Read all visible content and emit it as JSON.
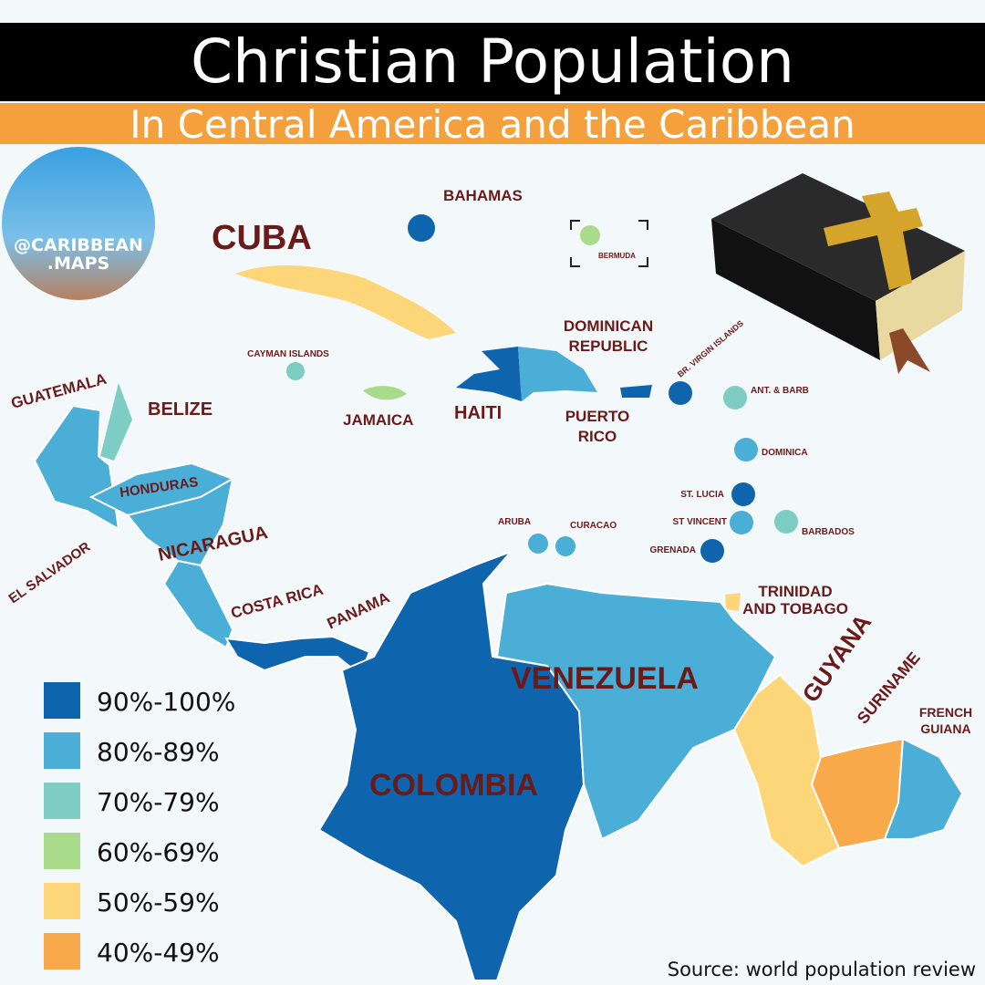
{
  "header": {
    "title": "Christian Population",
    "subtitle": "In Central America and the Caribbean"
  },
  "logo": {
    "handle": [
      "@CARIBBEAN",
      ".MAPS"
    ]
  },
  "map": {
    "labels": {
      "cuba": "CUBA",
      "bahamas": "BAHAMAS",
      "bermuda": "BERMUDA",
      "dominican_republic": [
        "DOMINICAN",
        "REPUBLIC"
      ],
      "cayman_islands": "CAYMAN ISLANDS",
      "guatemala": "GUATEMALA",
      "belize": "BELIZE",
      "jamaica": "JAMAICA",
      "haiti": "HAITI",
      "puerto_rico": [
        "PUERTO",
        "RICO"
      ],
      "br_virgin_islands": "BR. VIRGIN ISLANDS",
      "ant_barb": "ANT. & BARB",
      "dominica": "DOMINICA",
      "honduras": "HONDURAS",
      "st_lucia": "ST. LUCIA",
      "st_vincent": "ST VINCENT",
      "barbados": "BARBADOS",
      "aruba": "ARUBA",
      "curacao": "CURACAO",
      "grenada": "GRENADA",
      "nicaragua": "NICARAGUA",
      "el_salvador": "EL SALVADOR",
      "costa_rica": "COSTA RICA",
      "panama": "PANAMA",
      "trinidad_and_tobago": [
        "TRINIDAD",
        "AND TOBAGO"
      ],
      "guyana": "GUYANA",
      "suriname": "SURINAME",
      "french_guiana": [
        "FRENCH",
        "GUIANA"
      ],
      "venezuela": "VENEZUELA",
      "colombia": "COLOMBIA"
    }
  },
  "legend": [
    {
      "label": "90%-100%",
      "color": "#0f64ae"
    },
    {
      "label": "80%-89%",
      "color": "#4aaed6"
    },
    {
      "label": "70%-79%",
      "color": "#7ecdc4"
    },
    {
      "label": "60%-69%",
      "color": "#a9dc8a"
    },
    {
      "label": "50%-59%",
      "color": "#fdd67a"
    },
    {
      "label": "40%-49%",
      "color": "#f8a94a"
    }
  ],
  "footer": {
    "source": "Source: world population review"
  }
}
